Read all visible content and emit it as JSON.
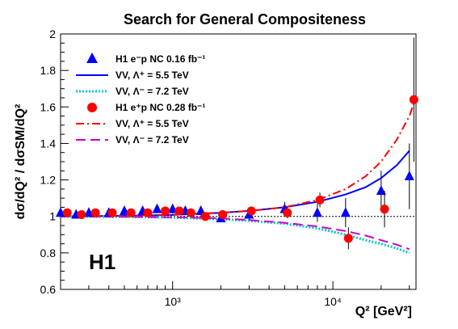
{
  "chart_data": {
    "type": "scatter",
    "title": "Search for General Compositeness",
    "watermark": "H1",
    "xlabel": "Q² [GeV²]",
    "ylabel": "dσ/dQ² / dσSM/dQ²",
    "x_scale": "log",
    "xlim": [
      200,
      33000
    ],
    "ylim": [
      0.6,
      2.0
    ],
    "x_ticks": [
      1000,
      10000
    ],
    "x_tick_labels": [
      "10³",
      "10⁴"
    ],
    "y_ticks": [
      0.6,
      0.8,
      1.0,
      1.2,
      1.4,
      1.6,
      1.8,
      2.0
    ],
    "y_tick_labels": [
      "0.6",
      "0.8",
      "1",
      "1.2",
      "1.4",
      "1.6",
      "1.8",
      "2"
    ],
    "reference_line": 1.0,
    "legend": [
      {
        "label": "H1 e⁻p NC 0.16 fb⁻¹",
        "marker": "triangle",
        "color": "#0000ff"
      },
      {
        "label": "VV, Λ⁺ = 5.5 TeV",
        "line": "solid",
        "color": "#0000ff"
      },
      {
        "label": "VV, Λ⁻ = 7.2 TeV",
        "line": "dotted",
        "color": "#00c8c8"
      },
      {
        "label": "H1 e⁺p NC 0.28 fb⁻¹",
        "marker": "circle",
        "color": "#ff0000"
      },
      {
        "label": "VV, Λ⁺ = 5.5 TeV",
        "line": "dashdot",
        "color": "#ff0000"
      },
      {
        "label": "VV, Λ⁻ = 7.2 TeV",
        "line": "dashed",
        "color": "#cc00cc"
      }
    ],
    "series": [
      {
        "name": "H1 e⁻p NC 0.16 fb⁻¹",
        "kind": "points",
        "marker": "triangle",
        "color": "#0000ff",
        "x": [
          200,
          250,
          300,
          400,
          500,
          650,
          800,
          1000,
          1200,
          1500,
          2000,
          3000,
          5000,
          8000,
          12000,
          20000,
          30000
        ],
        "y": [
          1.02,
          1.01,
          1.02,
          1.02,
          1.03,
          1.03,
          1.04,
          1.04,
          1.03,
          1.03,
          0.99,
          1.01,
          1.04,
          1.02,
          1.02,
          1.14,
          1.22
        ],
        "err": [
          0.01,
          0.01,
          0.012,
          0.015,
          0.015,
          0.02,
          0.02,
          0.025,
          0.02,
          0.025,
          0.02,
          0.03,
          0.04,
          0.05,
          0.08,
          0.11,
          0.18
        ]
      },
      {
        "name": "H1 e⁺p NC 0.28 fb⁻¹",
        "kind": "points",
        "marker": "circle",
        "color": "#ff0000",
        "x": [
          220,
          270,
          330,
          420,
          550,
          700,
          900,
          1100,
          1300,
          1600,
          2050,
          3100,
          5200,
          8300,
          12500,
          21000,
          32000
        ],
        "y": [
          1.02,
          1.01,
          1.02,
          1.02,
          1.02,
          1.02,
          1.03,
          1.03,
          1.02,
          1.0,
          1.01,
          1.03,
          1.02,
          1.09,
          0.88,
          1.04,
          1.64
        ],
        "err": [
          0.008,
          0.008,
          0.01,
          0.01,
          0.012,
          0.012,
          0.015,
          0.015,
          0.015,
          0.02,
          0.015,
          0.025,
          0.03,
          0.04,
          0.06,
          0.1,
          0.34
        ]
      },
      {
        "name": "VV, Λ⁺ = 5.5 TeV (e⁻p)",
        "kind": "line",
        "style": "solid",
        "color": "#0000ff",
        "x": [
          200,
          500,
          1000,
          2000,
          3000,
          5000,
          8000,
          12000,
          16000,
          20000,
          25000,
          30000
        ],
        "y": [
          1.0,
          1.003,
          1.008,
          1.02,
          1.03,
          1.05,
          1.08,
          1.12,
          1.16,
          1.21,
          1.28,
          1.36
        ]
      },
      {
        "name": "VV, Λ⁻ = 7.2 TeV (e⁻p)",
        "kind": "line",
        "style": "dotted",
        "color": "#00c8c8",
        "x": [
          200,
          500,
          1000,
          2000,
          3000,
          5000,
          8000,
          12000,
          16000,
          20000,
          25000,
          30000
        ],
        "y": [
          1.0,
          0.998,
          0.994,
          0.985,
          0.976,
          0.96,
          0.935,
          0.9,
          0.87,
          0.85,
          0.825,
          0.8
        ]
      },
      {
        "name": "VV, Λ⁺ = 5.5 TeV (e⁺p)",
        "kind": "line",
        "style": "dashdot",
        "color": "#ff0000",
        "x": [
          200,
          500,
          1000,
          2000,
          3000,
          5000,
          8000,
          12000,
          16000,
          20000,
          25000,
          30000,
          32000
        ],
        "y": [
          1.0,
          1.003,
          1.01,
          1.02,
          1.03,
          1.05,
          1.09,
          1.15,
          1.22,
          1.3,
          1.42,
          1.55,
          1.62
        ]
      },
      {
        "name": "VV, Λ⁻ = 7.2 TeV (e⁺p)",
        "kind": "line",
        "style": "dashed",
        "color": "#cc00cc",
        "x": [
          200,
          500,
          1000,
          2000,
          3000,
          5000,
          8000,
          12000,
          16000,
          20000,
          25000,
          30000
        ],
        "y": [
          1.0,
          0.998,
          0.995,
          0.99,
          0.98,
          0.965,
          0.945,
          0.92,
          0.895,
          0.87,
          0.845,
          0.82
        ]
      }
    ]
  }
}
